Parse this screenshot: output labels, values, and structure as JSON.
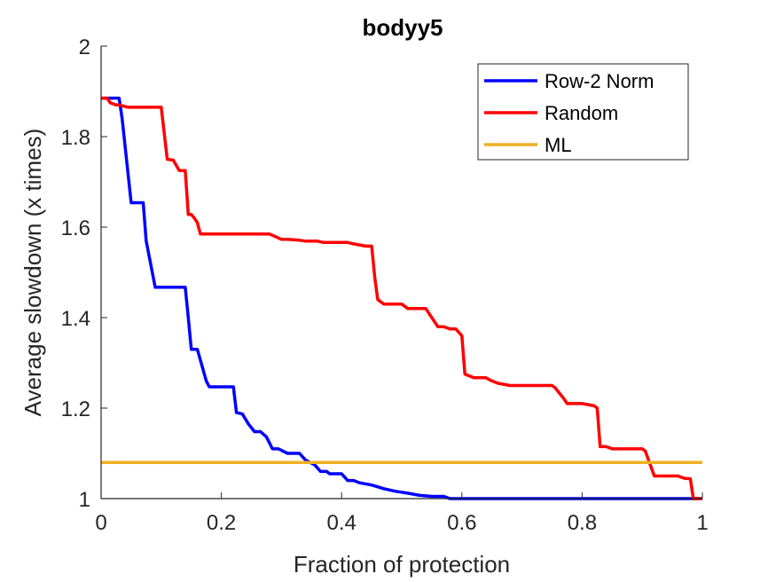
{
  "chart_data": {
    "type": "line",
    "title": "bodyy5",
    "xlabel": "Fraction of protection",
    "ylabel": "Average slowdown (x times)",
    "xlim": [
      0,
      1
    ],
    "ylim": [
      1,
      2
    ],
    "xticks": [
      0,
      0.2,
      0.4,
      0.6,
      0.8,
      1
    ],
    "xtick_labels": [
      "0",
      "0.2",
      "0.4",
      "0.6",
      "0.8",
      "1"
    ],
    "yticks": [
      1,
      1.2,
      1.4,
      1.6,
      1.8,
      2
    ],
    "ytick_labels": [
      "1",
      "1.2",
      "1.4",
      "1.6",
      "1.8",
      "2"
    ],
    "grid": false,
    "legend_position": "top-right",
    "series": [
      {
        "name": "Row-2 Norm",
        "color": "#0000FF",
        "x": [
          0,
          0.03,
          0.035,
          0.05,
          0.055,
          0.07,
          0.075,
          0.09,
          0.095,
          0.14,
          0.145,
          0.15,
          0.16,
          0.175,
          0.18,
          0.22,
          0.225,
          0.235,
          0.245,
          0.255,
          0.265,
          0.275,
          0.285,
          0.295,
          0.31,
          0.33,
          0.34,
          0.355,
          0.365,
          0.375,
          0.38,
          0.39,
          0.4,
          0.41,
          0.42,
          0.43,
          0.45,
          0.47,
          0.49,
          0.51,
          0.53,
          0.55,
          0.57,
          0.58,
          0.6,
          0.8,
          0.97,
          1.0
        ],
        "y": [
          1.885,
          1.885,
          1.84,
          1.654,
          1.654,
          1.654,
          1.57,
          1.467,
          1.467,
          1.467,
          1.4,
          1.33,
          1.33,
          1.26,
          1.247,
          1.247,
          1.19,
          1.187,
          1.165,
          1.148,
          1.148,
          1.136,
          1.11,
          1.11,
          1.1,
          1.1,
          1.085,
          1.075,
          1.06,
          1.06,
          1.055,
          1.055,
          1.055,
          1.04,
          1.04,
          1.035,
          1.03,
          1.022,
          1.016,
          1.012,
          1.007,
          1.005,
          1.005,
          1.0,
          1.0,
          1.0,
          1.0,
          1.0
        ]
      },
      {
        "name": "Random",
        "color": "#FF0000",
        "x": [
          0,
          0.01,
          0.015,
          0.025,
          0.03,
          0.045,
          0.05,
          0.095,
          0.1,
          0.11,
          0.12,
          0.13,
          0.135,
          0.14,
          0.145,
          0.15,
          0.155,
          0.16,
          0.165,
          0.17,
          0.28,
          0.3,
          0.31,
          0.33,
          0.34,
          0.36,
          0.37,
          0.38,
          0.41,
          0.42,
          0.44,
          0.45,
          0.455,
          0.46,
          0.47,
          0.5,
          0.51,
          0.54,
          0.55,
          0.56,
          0.57,
          0.58,
          0.59,
          0.6,
          0.605,
          0.62,
          0.64,
          0.65,
          0.66,
          0.68,
          0.75,
          0.755,
          0.77,
          0.775,
          0.78,
          0.8,
          0.82,
          0.825,
          0.83,
          0.84,
          0.85,
          0.9,
          0.905,
          0.92,
          0.93,
          0.96,
          0.965,
          0.97,
          0.98,
          0.985,
          1.0
        ],
        "y": [
          1.885,
          1.885,
          1.875,
          1.87,
          1.87,
          1.865,
          1.865,
          1.865,
          1.865,
          1.75,
          1.748,
          1.725,
          1.725,
          1.725,
          1.628,
          1.628,
          1.62,
          1.61,
          1.585,
          1.585,
          1.585,
          1.573,
          1.573,
          1.571,
          1.569,
          1.569,
          1.566,
          1.566,
          1.566,
          1.563,
          1.558,
          1.558,
          1.49,
          1.44,
          1.43,
          1.43,
          1.42,
          1.42,
          1.4,
          1.38,
          1.38,
          1.375,
          1.375,
          1.36,
          1.275,
          1.267,
          1.267,
          1.26,
          1.255,
          1.25,
          1.25,
          1.245,
          1.22,
          1.21,
          1.21,
          1.21,
          1.205,
          1.2,
          1.115,
          1.115,
          1.11,
          1.11,
          1.105,
          1.05,
          1.05,
          1.05,
          1.047,
          1.045,
          1.044,
          1.0,
          1.0
        ]
      },
      {
        "name": "ML",
        "color": "#EDB120",
        "x": [
          0,
          1
        ],
        "y": [
          1.08,
          1.08
        ]
      }
    ]
  }
}
